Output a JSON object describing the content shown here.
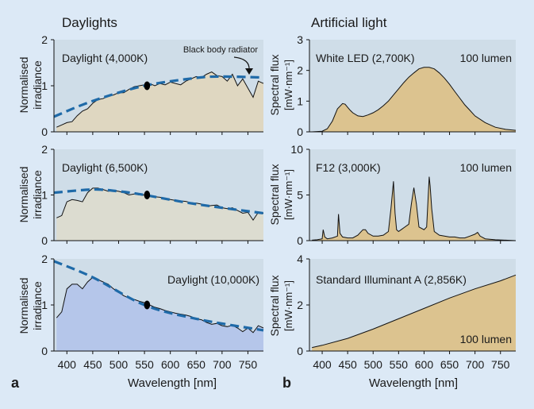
{
  "figure": {
    "left_title": "Daylights",
    "right_title": "Artificial light",
    "label_a": "a",
    "label_b": "b",
    "xlabel": "Wavelength [nm]",
    "left_ylabel_line1": "Normalised",
    "left_ylabel_line2": "irradiance",
    "right_ylabel_line1": "Spectral flux",
    "right_ylabel_line2": "[mW·nm⁻¹]",
    "colors": {
      "background": "#dce9f6",
      "panel": "#cfdde8",
      "dashed": "#1f6aa8",
      "tan": "#dcc38f",
      "beige": "#dfd7c1",
      "gray": "#dcdcd0",
      "lilac": "#b5c6ea"
    }
  },
  "chart_data": [
    {
      "type": "area",
      "title": "Daylight (4,000K)",
      "annotation": "Black body radiator",
      "fill": "#dfd7c1",
      "xlim": [
        375,
        780
      ],
      "ylim": [
        0,
        2
      ],
      "xticks": [
        "400",
        "450",
        "500",
        "550",
        "600",
        "650",
        "700",
        "750"
      ],
      "yticks": [
        "0",
        "1",
        "2"
      ],
      "x": [
        380,
        390,
        400,
        410,
        420,
        430,
        440,
        450,
        460,
        470,
        480,
        490,
        500,
        510,
        520,
        530,
        540,
        550,
        560,
        570,
        580,
        590,
        600,
        610,
        620,
        630,
        640,
        650,
        660,
        670,
        680,
        690,
        700,
        710,
        720,
        730,
        740,
        750,
        760,
        770,
        780
      ],
      "y": [
        0.1,
        0.15,
        0.2,
        0.22,
        0.35,
        0.45,
        0.5,
        0.62,
        0.7,
        0.72,
        0.78,
        0.8,
        0.85,
        0.85,
        0.92,
        0.98,
        1.0,
        1.02,
        1.05,
        1.0,
        1.05,
        1.02,
        1.08,
        1.05,
        1.02,
        1.1,
        1.15,
        1.2,
        1.18,
        1.25,
        1.3,
        1.22,
        1.2,
        1.1,
        1.25,
        1.0,
        1.15,
        0.95,
        0.75,
        1.1,
        1.05
      ],
      "reference": {
        "x": [
          375,
          450,
          550,
          650,
          700,
          780
        ],
        "y": [
          0.33,
          0.67,
          1.0,
          1.17,
          1.2,
          1.18
        ]
      },
      "marker": {
        "x": 555,
        "y": 1.0
      }
    },
    {
      "type": "area",
      "title": "Daylight (6,500K)",
      "fill": "#dcdcd0",
      "xlim": [
        375,
        780
      ],
      "ylim": [
        0,
        2
      ],
      "xticks": [
        "400",
        "450",
        "500",
        "550",
        "600",
        "650",
        "700",
        "750"
      ],
      "yticks": [
        "0",
        "1",
        "2"
      ],
      "x": [
        380,
        390,
        400,
        410,
        420,
        430,
        440,
        450,
        460,
        470,
        480,
        490,
        500,
        510,
        520,
        530,
        540,
        550,
        560,
        570,
        580,
        590,
        600,
        610,
        620,
        630,
        640,
        650,
        660,
        670,
        680,
        690,
        700,
        710,
        720,
        730,
        740,
        750,
        760,
        770,
        780
      ],
      "y": [
        0.5,
        0.55,
        0.85,
        0.9,
        0.88,
        0.85,
        1.05,
        1.15,
        1.15,
        1.12,
        1.08,
        1.1,
        1.08,
        1.05,
        1.0,
        1.02,
        1.0,
        1.0,
        0.98,
        0.96,
        0.95,
        0.92,
        0.9,
        0.88,
        0.87,
        0.86,
        0.83,
        0.82,
        0.8,
        0.75,
        0.77,
        0.78,
        0.72,
        0.7,
        0.72,
        0.66,
        0.6,
        0.62,
        0.45,
        0.62,
        0.6
      ],
      "reference": {
        "x": [
          375,
          450,
          500,
          550,
          650,
          780
        ],
        "y": [
          1.05,
          1.12,
          1.08,
          1.0,
          0.8,
          0.6
        ]
      },
      "marker": {
        "x": 555,
        "y": 1.0
      }
    },
    {
      "type": "area",
      "title": "Daylight (10,000K)",
      "fill": "#b5c6ea",
      "xlim": [
        375,
        780
      ],
      "ylim": [
        0,
        2
      ],
      "xticks": [
        "400",
        "450",
        "500",
        "550",
        "600",
        "650",
        "700",
        "750"
      ],
      "yticks": [
        "0",
        "1",
        "2"
      ],
      "x": [
        380,
        390,
        400,
        410,
        420,
        430,
        440,
        450,
        460,
        470,
        480,
        490,
        500,
        510,
        520,
        530,
        540,
        550,
        560,
        570,
        580,
        590,
        600,
        610,
        620,
        630,
        640,
        650,
        660,
        670,
        680,
        690,
        700,
        710,
        720,
        730,
        740,
        750,
        760,
        770,
        780
      ],
      "y": [
        0.72,
        0.85,
        1.35,
        1.45,
        1.45,
        1.35,
        1.5,
        1.6,
        1.55,
        1.5,
        1.45,
        1.35,
        1.28,
        1.2,
        1.15,
        1.12,
        1.08,
        1.05,
        1.0,
        0.95,
        0.92,
        0.88,
        0.85,
        0.82,
        0.8,
        0.78,
        0.75,
        0.7,
        0.68,
        0.62,
        0.58,
        0.6,
        0.55,
        0.53,
        0.56,
        0.5,
        0.42,
        0.5,
        0.4,
        0.55,
        0.5
      ],
      "reference": {
        "x": [
          375,
          450,
          550,
          650,
          780
        ],
        "y": [
          1.95,
          1.6,
          1.0,
          0.7,
          0.45
        ]
      },
      "marker": {
        "x": 555,
        "y": 1.0
      }
    },
    {
      "type": "area",
      "title": "White LED (2,700K)",
      "annotation": "100 lumen",
      "fill": "#dcc38f",
      "xlim": [
        375,
        780
      ],
      "ylim": [
        0,
        3
      ],
      "xticks": [
        "400",
        "450",
        "500",
        "550",
        "600",
        "650",
        "700",
        "750"
      ],
      "yticks": [
        "0",
        "1",
        "2",
        "3"
      ],
      "x": [
        380,
        400,
        410,
        420,
        430,
        440,
        445,
        450,
        455,
        460,
        470,
        480,
        490,
        500,
        510,
        520,
        530,
        540,
        550,
        560,
        570,
        580,
        590,
        600,
        610,
        620,
        630,
        640,
        650,
        660,
        670,
        680,
        690,
        700,
        720,
        740,
        760,
        780
      ],
      "y": [
        0.0,
        0.02,
        0.1,
        0.35,
        0.75,
        0.92,
        0.9,
        0.8,
        0.7,
        0.62,
        0.52,
        0.5,
        0.55,
        0.62,
        0.72,
        0.85,
        1.0,
        1.2,
        1.4,
        1.6,
        1.78,
        1.92,
        2.05,
        2.1,
        2.1,
        2.05,
        1.92,
        1.75,
        1.55,
        1.32,
        1.1,
        0.88,
        0.7,
        0.52,
        0.3,
        0.15,
        0.08,
        0.05
      ]
    },
    {
      "type": "area",
      "title": "F12 (3,000K)",
      "annotation": "100 lumen",
      "fill": "#dcc38f",
      "xlim": [
        375,
        780
      ],
      "ylim": [
        0,
        10
      ],
      "xticks": [
        "400",
        "450",
        "500",
        "550",
        "600",
        "650",
        "700",
        "750"
      ],
      "yticks": [
        "0",
        "5",
        "10"
      ],
      "x": [
        380,
        390,
        400,
        402,
        405,
        410,
        420,
        430,
        432,
        435,
        440,
        450,
        460,
        470,
        480,
        485,
        490,
        500,
        510,
        520,
        530,
        535,
        540,
        543,
        546,
        550,
        555,
        560,
        570,
        575,
        580,
        585,
        590,
        600,
        605,
        610,
        612,
        615,
        620,
        630,
        640,
        650,
        660,
        670,
        680,
        690,
        700,
        705,
        710,
        720,
        740,
        760,
        780
      ],
      "y": [
        0.05,
        0.1,
        0.2,
        1.2,
        0.4,
        0.2,
        0.3,
        0.5,
        2.9,
        0.8,
        0.4,
        0.3,
        0.3,
        0.6,
        1.2,
        1.2,
        0.8,
        0.5,
        0.5,
        0.6,
        1.0,
        3.5,
        6.5,
        3.0,
        1.2,
        1.0,
        1.2,
        1.4,
        1.8,
        4.0,
        5.8,
        4.0,
        1.5,
        1.2,
        1.5,
        7.0,
        6.0,
        3.5,
        1.0,
        0.6,
        0.5,
        0.4,
        0.4,
        0.3,
        0.3,
        0.5,
        0.7,
        0.9,
        0.5,
        0.2,
        0.1,
        0.05,
        0.0
      ]
    },
    {
      "type": "area",
      "title": "Standard Illuminant A (2,856K)",
      "annotation": "100 lumen",
      "fill": "#dcc38f",
      "xlim": [
        375,
        780
      ],
      "ylim": [
        0,
        4
      ],
      "xticks": [
        "400",
        "450",
        "500",
        "550",
        "600",
        "650",
        "700",
        "750"
      ],
      "yticks": [
        "0",
        "2",
        "4"
      ],
      "x": [
        380,
        400,
        450,
        500,
        550,
        600,
        650,
        700,
        750,
        780
      ],
      "y": [
        0.15,
        0.25,
        0.55,
        0.95,
        1.4,
        1.85,
        2.3,
        2.7,
        3.05,
        3.3
      ]
    }
  ]
}
